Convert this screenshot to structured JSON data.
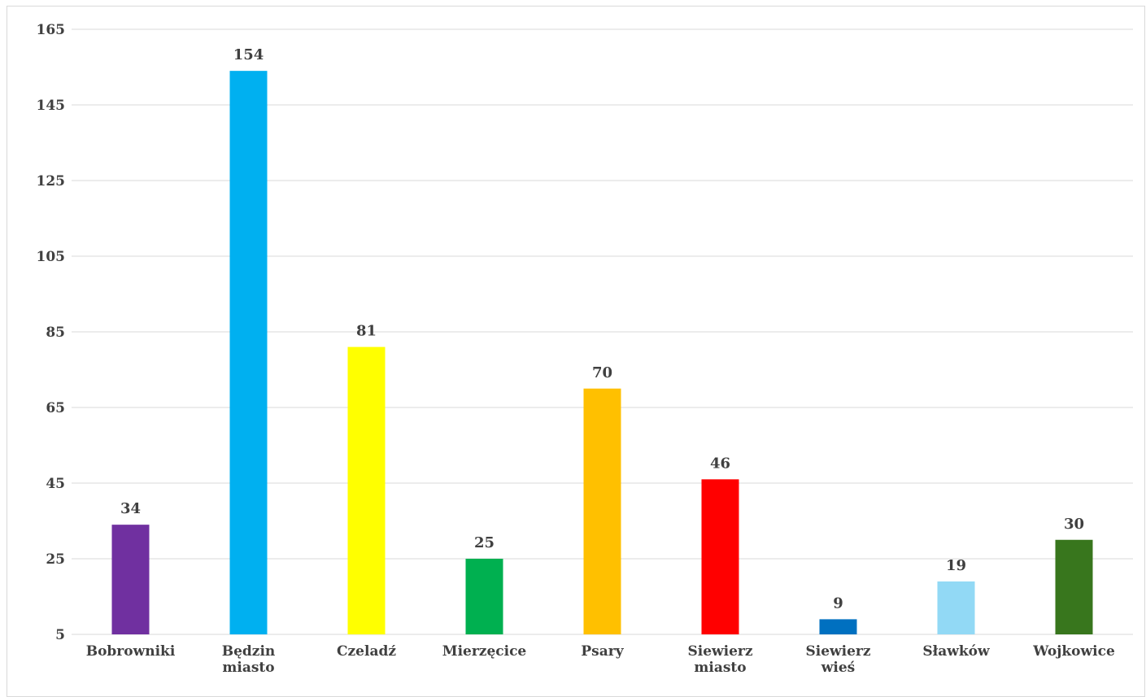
{
  "chart_data": {
    "type": "bar",
    "title": "",
    "xlabel": "",
    "ylabel": "",
    "ylim": [
      5,
      165
    ],
    "yticks": [
      "5",
      "25",
      "45",
      "65",
      "85",
      "105",
      "125",
      "145",
      "165"
    ],
    "grid": true,
    "legend": "none",
    "categories": [
      [
        "Bobrowniki"
      ],
      [
        "Będzin",
        "miasto"
      ],
      [
        "Czeladź"
      ],
      [
        "Mierzęcice"
      ],
      [
        "Psary"
      ],
      [
        "Siewierz",
        "miasto"
      ],
      [
        "Siewierz",
        "wieś"
      ],
      [
        "Sławków"
      ],
      [
        "Wojkowice"
      ]
    ],
    "values": [
      34,
      154,
      81,
      25,
      70,
      46,
      9,
      19,
      30
    ],
    "colors": [
      "#7030a0",
      "#00b0f0",
      "#ffff00",
      "#00b050",
      "#ffc000",
      "#ff0000",
      "#0070c0",
      "#92d9f5",
      "#38761d"
    ]
  }
}
